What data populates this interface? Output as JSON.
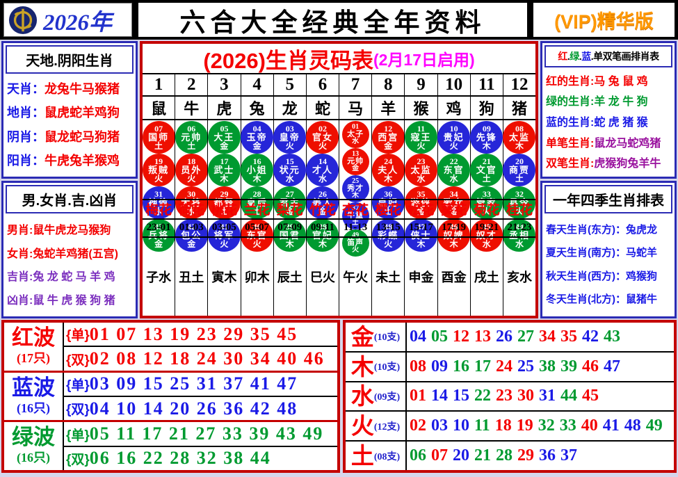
{
  "header": {
    "year": "2026年",
    "title": "六合大全经典全年资料",
    "vip": "(VIP)精华版"
  },
  "colors": {
    "red": "#f40000",
    "green": "#009a30",
    "blue": "#1a1ae6",
    "purple": "#7b2fbe",
    "plum": "#99119e",
    "magenta": "#ff00ff",
    "black": "#000000",
    "orange": "#ff9800",
    "navy_border": "#2b2bb4",
    "red_border": "#c40000",
    "circle_red": "#ee0f00",
    "circle_green": "#009a30",
    "circle_blue": "#2626d8",
    "page_bg": "#d6d6ec",
    "year_blue": "#2233cc",
    "gold": "#c9a227"
  },
  "left_top": {
    "title": "天地.阴阳生肖",
    "rows": [
      {
        "label": "天肖：",
        "value": "龙兔牛马猴猪"
      },
      {
        "label": "地肖：",
        "value": "鼠虎蛇羊鸡狗"
      },
      {
        "label": "阴肖：",
        "value": "鼠龙蛇马狗猪"
      },
      {
        "label": "阳肖：",
        "value": "牛虎兔羊猴鸡"
      }
    ]
  },
  "left_bottom": {
    "title": "男.女肖.吉.凶肖",
    "rows": [
      {
        "label": "男肖:",
        "value": "鼠牛虎龙马猴狗",
        "color": "red"
      },
      {
        "label": "女肖:",
        "value": "兔蛇羊鸡猪(五宫)",
        "color": "red"
      },
      {
        "label": "吉肖:",
        "value": "兔 龙 蛇 马 羊 鸡",
        "color": "purple"
      },
      {
        "label": "凶肖:",
        "value": "鼠 牛 虎 猴 狗 猪",
        "color": "purple"
      }
    ]
  },
  "right_top": {
    "title_parts": [
      {
        "text": "红",
        "color": "red"
      },
      {
        "text": ".",
        "color": "black"
      },
      {
        "text": "绿",
        "color": "green"
      },
      {
        "text": ".",
        "color": "black"
      },
      {
        "text": "蓝",
        "color": "blue"
      },
      {
        "text": ".",
        "color": "black"
      },
      {
        "text": "单双笔画排肖表",
        "color": "black"
      }
    ],
    "rows": [
      {
        "label": "红的生肖:",
        "value": "马 兔 鼠 鸡",
        "label_color": "red",
        "value_color": "red"
      },
      {
        "label": "绿的生肖:",
        "value": "羊 龙 牛 狗",
        "label_color": "green",
        "value_color": "green"
      },
      {
        "label": "蓝的生肖:",
        "value": "蛇 虎 猪 猴",
        "label_color": "blue",
        "value_color": "blue"
      },
      {
        "label": "单笔生肖:",
        "value": "鼠龙马蛇鸡猪",
        "label_color": "red",
        "value_color": "plum"
      },
      {
        "label": "双笔生肖:",
        "value": "虎猴狗兔羊牛",
        "label_color": "red",
        "value_color": "plum"
      }
    ]
  },
  "right_bottom": {
    "title": "一年四季生肖排表",
    "rows": [
      {
        "label": "春天生肖(东方)：",
        "value": "兔虎龙",
        "label_color": "blue",
        "value_color": "blue"
      },
      {
        "label": "夏天生肖(南方)：",
        "value": "马蛇羊",
        "label_color": "blue",
        "value_color": "blue"
      },
      {
        "label": "秋天生肖(西方)：",
        "value": "鸡猴狗",
        "label_color": "blue",
        "value_color": "blue"
      },
      {
        "label": "冬天生肖(北方)：",
        "value": "鼠猪牛",
        "label_color": "blue",
        "value_color": "blue"
      }
    ]
  },
  "center": {
    "title_main": "(2026)生肖灵码表",
    "title_note": "(2月17日启用)",
    "columns": [
      {
        "num": "1",
        "zodiac": "鼠",
        "flower": "梅花",
        "time": "23-01",
        "branch": "子水",
        "circles": [
          {
            "n": "07",
            "t": "国师",
            "e": "土",
            "c": "red"
          },
          {
            "n": "19",
            "t": "叛贼",
            "e": "火",
            "c": "red"
          },
          {
            "n": "31",
            "t": "神偷",
            "e": "水",
            "c": "blue"
          },
          {
            "n": "43",
            "t": "兵将",
            "e": "金",
            "c": "green"
          }
        ]
      },
      {
        "num": "2",
        "zodiac": "牛",
        "flower": "荷花",
        "time": "01-03",
        "branch": "丑土",
        "circles": [
          {
            "n": "06",
            "t": "元帅",
            "e": "土",
            "c": "green"
          },
          {
            "n": "18",
            "t": "员外",
            "e": "火",
            "c": "red"
          },
          {
            "n": "30",
            "t": "大将",
            "e": "水",
            "c": "red"
          },
          {
            "n": "42",
            "t": "包公",
            "e": "金",
            "c": "blue"
          }
        ]
      },
      {
        "num": "3",
        "zodiac": "虎",
        "flower": "桃花",
        "time": "03-05",
        "branch": "寅木",
        "circles": [
          {
            "n": "05",
            "t": "大王",
            "e": "金",
            "c": "green"
          },
          {
            "n": "17",
            "t": "武士",
            "e": "木",
            "c": "green"
          },
          {
            "n": "29",
            "t": "都督",
            "e": "土",
            "c": "red"
          },
          {
            "n": "41",
            "t": "将军",
            "e": "火",
            "c": "blue"
          }
        ]
      },
      {
        "num": "4",
        "zodiac": "兔",
        "flower": "兰花",
        "time": "05-07",
        "branch": "卯木",
        "circles": [
          {
            "n": "04",
            "t": "玉帝",
            "e": "金",
            "c": "blue"
          },
          {
            "n": "16",
            "t": "小姐",
            "e": "木",
            "c": "green"
          },
          {
            "n": "28",
            "t": "皇后",
            "e": "土",
            "c": "green"
          },
          {
            "n": "40",
            "t": "东官",
            "e": "火",
            "c": "red"
          }
        ]
      },
      {
        "num": "5",
        "zodiac": "龙",
        "flower": "梨花",
        "time": "07-09",
        "branch": "辰土",
        "circles": [
          {
            "n": "03",
            "t": "皇帝",
            "e": "火",
            "c": "blue"
          },
          {
            "n": "15",
            "t": "状元",
            "e": "水",
            "c": "blue"
          },
          {
            "n": "27",
            "t": "君主",
            "e": "金",
            "c": "green"
          },
          {
            "n": "39",
            "t": "国君",
            "e": "木",
            "c": "green"
          }
        ]
      },
      {
        "num": "6",
        "zodiac": "蛇",
        "flower": "竹花",
        "time": "09-11",
        "branch": "巳火",
        "circles": [
          {
            "n": "02",
            "t": "官女",
            "e": "火",
            "c": "red"
          },
          {
            "n": "14",
            "t": "才人",
            "e": "水",
            "c": "blue"
          },
          {
            "n": "26",
            "t": "美人",
            "e": "金",
            "c": "blue"
          },
          {
            "n": "38",
            "t": "官妃",
            "e": "木",
            "c": "green"
          }
        ]
      },
      {
        "num": "7",
        "zodiac": "马",
        "flower": "杏花",
        "time": "11-13",
        "branch": "午火",
        "circles": [
          {
            "n": "01",
            "t": "太子",
            "e": "水",
            "c": "red"
          },
          {
            "n": "13",
            "t": "元帅",
            "e": "金",
            "c": "red"
          },
          {
            "n": "25",
            "t": "秀才",
            "e": "木",
            "c": "blue"
          },
          {
            "n": "37",
            "t": "牛童",
            "e": "土",
            "c": "blue"
          },
          {
            "n": "49",
            "t": "笛声",
            "e": "火",
            "c": "green"
          }
        ]
      },
      {
        "num": "8",
        "zodiac": "羊",
        "flower": "樱花",
        "time": "13-15",
        "branch": "未土",
        "circles": [
          {
            "n": "12",
            "t": "西宫",
            "e": "金",
            "c": "red"
          },
          {
            "n": "24",
            "t": "夫人",
            "e": "木",
            "c": "red"
          },
          {
            "n": "36",
            "t": "皇妃",
            "e": "土",
            "c": "blue"
          },
          {
            "n": "48",
            "t": "彩蝶",
            "e": "火",
            "c": "blue"
          }
        ]
      },
      {
        "num": "9",
        "zodiac": "猴",
        "flower": "松花",
        "time": "15-17",
        "branch": "申金",
        "circles": [
          {
            "n": "11",
            "t": "寇王",
            "e": "火",
            "c": "green"
          },
          {
            "n": "23",
            "t": "太监",
            "e": "水",
            "c": "red"
          },
          {
            "n": "35",
            "t": "游侠",
            "e": "金",
            "c": "red"
          },
          {
            "n": "47",
            "t": "侠士",
            "e": "木",
            "c": "blue"
          }
        ]
      },
      {
        "num": "10",
        "zodiac": "鸡",
        "flower": "葵花",
        "time": "17-19",
        "branch": "酉金",
        "circles": [
          {
            "n": "10",
            "t": "贵妃",
            "e": "火",
            "c": "blue"
          },
          {
            "n": "22",
            "t": "东官",
            "e": "水",
            "c": "green"
          },
          {
            "n": "34",
            "t": "歌女",
            "e": "金",
            "c": "red"
          },
          {
            "n": "46",
            "t": "奴婢",
            "e": "木",
            "c": "red"
          }
        ]
      },
      {
        "num": "11",
        "zodiac": "狗",
        "flower": "菊花",
        "time": "19-21",
        "branch": "戌土",
        "circles": [
          {
            "n": "09",
            "t": "先锋",
            "e": "木",
            "c": "blue"
          },
          {
            "n": "21",
            "t": "文官",
            "e": "土",
            "c": "green"
          },
          {
            "n": "33",
            "t": "管家",
            "e": "火",
            "c": "green"
          },
          {
            "n": "45",
            "t": "奴才",
            "e": "水",
            "c": "red"
          }
        ]
      },
      {
        "num": "12",
        "zodiac": "猪",
        "flower": "桂花",
        "time": "21-23",
        "branch": "亥水",
        "circles": [
          {
            "n": "08",
            "t": "太监",
            "e": "木",
            "c": "red"
          },
          {
            "n": "20",
            "t": "商贾",
            "e": "土",
            "c": "blue"
          },
          {
            "n": "32",
            "t": "县令",
            "e": "火",
            "c": "green"
          },
          {
            "n": "44",
            "t": "丞相",
            "e": "水",
            "c": "green"
          }
        ]
      }
    ]
  },
  "waves": [
    {
      "name": "红波",
      "count": "(17只)",
      "color": "red",
      "odd_label": "{单}",
      "odd": "01 07 13 19 23 29 35 45",
      "even_label": "{双}",
      "even": "02 08 12 18 24 30 34 40 46"
    },
    {
      "name": "蓝波",
      "count": "(16只)",
      "color": "blue",
      "odd_label": "{单}",
      "odd": "03 09 15 25 31 37 41 47",
      "even_label": "{双}",
      "even": "04 10 14 20 26 36 42 48"
    },
    {
      "name": "绿波",
      "count": "(16只)",
      "color": "green",
      "odd_label": "{单}",
      "odd": "05 11 17 21 27 33 39 43 49",
      "even_label": "{双}",
      "even": "06 16 22 28 32 38 44"
    }
  ],
  "elements": [
    {
      "name": "金",
      "count": "(10支)",
      "numbers": [
        "04",
        "05",
        "12",
        "13",
        "26",
        "27",
        "34",
        "35",
        "42",
        "43"
      ]
    },
    {
      "name": "木",
      "count": "(10支)",
      "numbers": [
        "08",
        "09",
        "16",
        "17",
        "24",
        "25",
        "38",
        "39",
        "46",
        "47"
      ]
    },
    {
      "name": "水",
      "count": "(09支)",
      "numbers": [
        "01",
        "14",
        "15",
        "22",
        "23",
        "30",
        "31",
        "44",
        "45"
      ]
    },
    {
      "name": "火",
      "count": "(12支)",
      "numbers": [
        "02",
        "03",
        "10",
        "11",
        "18",
        "19",
        "32",
        "33",
        "40",
        "41",
        "48",
        "49"
      ]
    },
    {
      "name": "土",
      "count": "(08支)",
      "numbers": [
        "06",
        "07",
        "20",
        "21",
        "28",
        "29",
        "36",
        "37"
      ]
    }
  ]
}
